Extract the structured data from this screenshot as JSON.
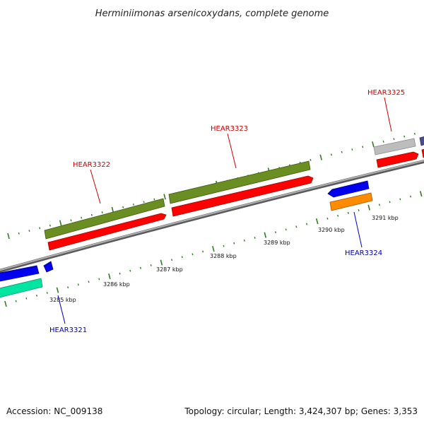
{
  "title": "Herminiimonas arsenicoxydans, complete genome",
  "footer": {
    "accession": "Accession: NC_009138",
    "summary": "Topology: circular; Length: 3,424,307 bp; Genes: 3,353"
  },
  "colors": {
    "background": "#ffffff",
    "backbone": "#8a8a8a",
    "tick": "#2e7d1f",
    "forward_label": "#cc0000",
    "reverse_label": "#0000aa"
  },
  "scale": {
    "unit": "kbp",
    "labels": [
      {
        "kbp": 3285,
        "text": "3285 kbp"
      },
      {
        "kbp": 3286,
        "text": "3286 kbp"
      },
      {
        "kbp": 3287,
        "text": "3287 kbp"
      },
      {
        "kbp": 3288,
        "text": "3288 kbp"
      },
      {
        "kbp": 3289,
        "text": "3289 kbp"
      },
      {
        "kbp": 3290,
        "text": "3290 kbp"
      },
      {
        "kbp": 3291,
        "text": "3291 kbp"
      }
    ]
  },
  "gene_labels": [
    {
      "name": "HEAR3321",
      "strand": "reverse"
    },
    {
      "name": "HEAR3322",
      "strand": "forward"
    },
    {
      "name": "HEAR3323",
      "strand": "forward"
    },
    {
      "name": "HEAR3324",
      "strand": "reverse"
    },
    {
      "name": "HEAR3325",
      "strand": "forward"
    }
  ],
  "tracks": {
    "cog_forward_colors": [
      "#6b8e23",
      "#6b8e23",
      "#bdbdbd",
      "#4b4b8f"
    ],
    "gene_forward_color": "#ff0000",
    "gene_reverse_color": "#0000ee",
    "cog_reverse_colors": [
      "#00e6a0",
      "#ff8c00"
    ]
  }
}
